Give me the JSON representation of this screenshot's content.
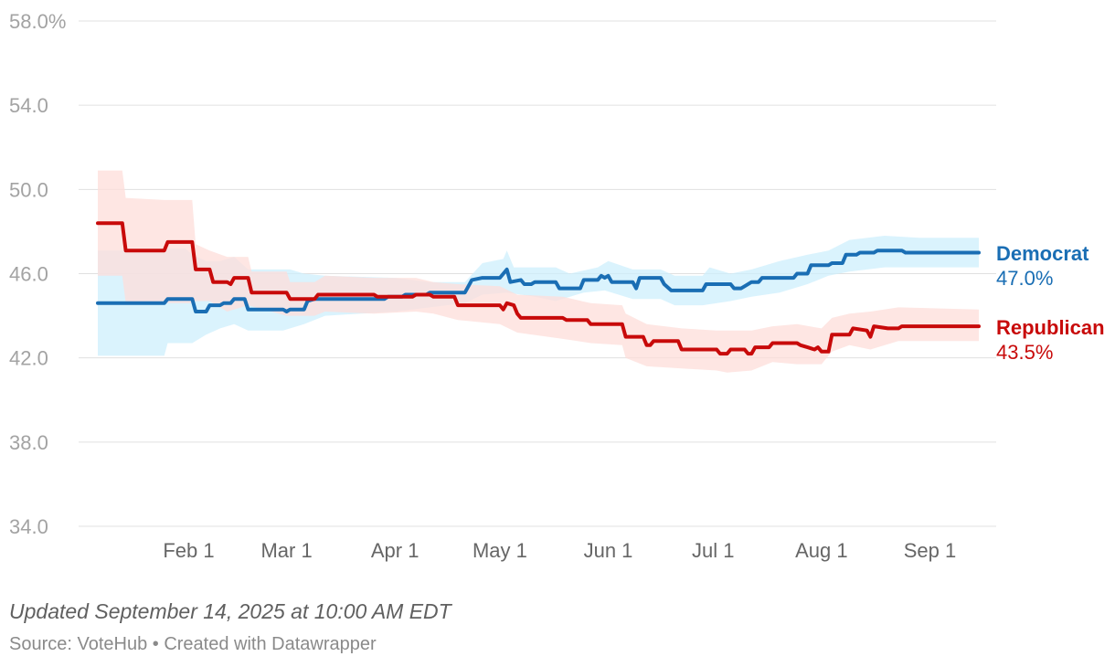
{
  "chart_data": {
    "type": "line",
    "title": "",
    "xlabel": "",
    "ylabel": "",
    "ylim": [
      34.0,
      58.0
    ],
    "yticks": [
      34.0,
      38.0,
      42.0,
      46.0,
      50.0,
      54.0,
      58.0
    ],
    "ytick_labels": [
      "34.0",
      "38.0",
      "42.0",
      "46.0",
      "50.0",
      "54.0",
      "58.0%"
    ],
    "xlim": [
      5,
      257
    ],
    "xticks": [
      {
        "day": 31,
        "label": "Feb 1"
      },
      {
        "day": 59,
        "label": "Mar 1"
      },
      {
        "day": 90,
        "label": "Apr 1"
      },
      {
        "day": 120,
        "label": "May 1"
      },
      {
        "day": 151,
        "label": "Jun 1"
      },
      {
        "day": 181,
        "label": "Jul 1"
      },
      {
        "day": 212,
        "label": "Aug 1"
      },
      {
        "day": 243,
        "label": "Sep 1"
      }
    ],
    "x_unit": "day of year 2025",
    "series": [
      {
        "name": "Democrat",
        "color": "#1a6eb4",
        "band_color": "#cdeffc",
        "end_label": "47.0%",
        "points": [
          [
            5,
            44.6
          ],
          [
            24,
            44.6
          ],
          [
            25,
            44.8
          ],
          [
            32,
            44.8
          ],
          [
            33,
            44.2
          ],
          [
            36,
            44.2
          ],
          [
            37,
            44.5
          ],
          [
            40,
            44.5
          ],
          [
            41,
            44.6
          ],
          [
            43,
            44.6
          ],
          [
            44,
            44.8
          ],
          [
            47,
            44.8
          ],
          [
            48,
            44.3
          ],
          [
            58,
            44.3
          ],
          [
            59,
            44.2
          ],
          [
            60,
            44.3
          ],
          [
            64,
            44.3
          ],
          [
            65,
            44.7
          ],
          [
            67,
            44.8
          ],
          [
            87,
            44.8
          ],
          [
            88,
            44.9
          ],
          [
            92,
            44.9
          ],
          [
            93,
            45.0
          ],
          [
            99,
            45.0
          ],
          [
            100,
            45.1
          ],
          [
            110,
            45.1
          ],
          [
            111,
            45.4
          ],
          [
            112,
            45.7
          ],
          [
            115,
            45.8
          ],
          [
            120,
            45.8
          ],
          [
            122,
            46.2
          ],
          [
            123,
            45.6
          ],
          [
            126,
            45.7
          ],
          [
            127,
            45.5
          ],
          [
            129,
            45.5
          ],
          [
            130,
            45.6
          ],
          [
            136,
            45.6
          ],
          [
            137,
            45.3
          ],
          [
            143,
            45.3
          ],
          [
            144,
            45.7
          ],
          [
            148,
            45.7
          ],
          [
            149,
            45.9
          ],
          [
            150,
            45.8
          ],
          [
            151,
            45.9
          ],
          [
            152,
            45.6
          ],
          [
            158,
            45.6
          ],
          [
            159,
            45.3
          ],
          [
            160,
            45.8
          ],
          [
            166,
            45.8
          ],
          [
            167,
            45.5
          ],
          [
            169,
            45.2
          ],
          [
            178,
            45.2
          ],
          [
            179,
            45.5
          ],
          [
            186,
            45.5
          ],
          [
            187,
            45.3
          ],
          [
            189,
            45.3
          ],
          [
            190,
            45.4
          ],
          [
            192,
            45.6
          ],
          [
            194,
            45.6
          ],
          [
            195,
            45.8
          ],
          [
            204,
            45.8
          ],
          [
            205,
            46.0
          ],
          [
            208,
            46.0
          ],
          [
            209,
            46.4
          ],
          [
            214,
            46.4
          ],
          [
            215,
            46.5
          ],
          [
            218,
            46.5
          ],
          [
            219,
            46.9
          ],
          [
            222,
            46.9
          ],
          [
            223,
            47.0
          ],
          [
            227,
            47.0
          ],
          [
            228,
            47.1
          ],
          [
            235,
            47.1
          ],
          [
            236,
            47.0
          ],
          [
            257,
            47.0
          ]
        ],
        "band_upper": [
          [
            5,
            47.1
          ],
          [
            20,
            47.1
          ],
          [
            24,
            47.2
          ],
          [
            30,
            47.2
          ],
          [
            32,
            46.9
          ],
          [
            36,
            46.6
          ],
          [
            40,
            46.6
          ],
          [
            44,
            46.8
          ],
          [
            48,
            46.2
          ],
          [
            60,
            46.2
          ],
          [
            64,
            46.0
          ],
          [
            70,
            45.9
          ],
          [
            90,
            45.8
          ],
          [
            100,
            45.6
          ],
          [
            110,
            45.6
          ],
          [
            115,
            46.5
          ],
          [
            121,
            46.7
          ],
          [
            122,
            47.1
          ],
          [
            124,
            46.3
          ],
          [
            136,
            46.3
          ],
          [
            140,
            46.0
          ],
          [
            148,
            46.3
          ],
          [
            151,
            46.6
          ],
          [
            158,
            46.2
          ],
          [
            166,
            46.2
          ],
          [
            170,
            45.9
          ],
          [
            178,
            45.9
          ],
          [
            180,
            46.3
          ],
          [
            186,
            46.0
          ],
          [
            192,
            46.2
          ],
          [
            200,
            46.6
          ],
          [
            208,
            46.9
          ],
          [
            214,
            47.1
          ],
          [
            220,
            47.6
          ],
          [
            230,
            47.8
          ],
          [
            240,
            47.7
          ],
          [
            257,
            47.7
          ]
        ],
        "band_lower": [
          [
            5,
            42.1
          ],
          [
            24,
            42.1
          ],
          [
            25,
            42.7
          ],
          [
            32,
            42.7
          ],
          [
            36,
            43.1
          ],
          [
            40,
            43.4
          ],
          [
            44,
            43.6
          ],
          [
            48,
            43.3
          ],
          [
            58,
            43.3
          ],
          [
            64,
            43.6
          ],
          [
            70,
            44.0
          ],
          [
            90,
            44.2
          ],
          [
            100,
            44.4
          ],
          [
            110,
            44.6
          ],
          [
            115,
            45.0
          ],
          [
            122,
            45.1
          ],
          [
            130,
            44.9
          ],
          [
            136,
            44.7
          ],
          [
            144,
            45.1
          ],
          [
            150,
            45.2
          ],
          [
            158,
            44.8
          ],
          [
            166,
            44.8
          ],
          [
            170,
            44.5
          ],
          [
            178,
            44.5
          ],
          [
            186,
            44.7
          ],
          [
            192,
            44.9
          ],
          [
            200,
            45.1
          ],
          [
            208,
            45.5
          ],
          [
            214,
            45.9
          ],
          [
            220,
            46.1
          ],
          [
            230,
            46.3
          ],
          [
            257,
            46.3
          ]
        ]
      },
      {
        "name": "Republican",
        "color": "#c80a0a",
        "band_color": "#fdddd9",
        "end_label": "43.5%",
        "points": [
          [
            5,
            48.4
          ],
          [
            12,
            48.4
          ],
          [
            13,
            47.1
          ],
          [
            24,
            47.1
          ],
          [
            25,
            47.5
          ],
          [
            32,
            47.5
          ],
          [
            33,
            46.2
          ],
          [
            37,
            46.2
          ],
          [
            38,
            45.6
          ],
          [
            42,
            45.6
          ],
          [
            43,
            45.5
          ],
          [
            44,
            45.8
          ],
          [
            48,
            45.8
          ],
          [
            49,
            45.1
          ],
          [
            59,
            45.1
          ],
          [
            60,
            44.8
          ],
          [
            67,
            44.8
          ],
          [
            68,
            45.0
          ],
          [
            84,
            45.0
          ],
          [
            85,
            44.9
          ],
          [
            95,
            44.9
          ],
          [
            96,
            45.0
          ],
          [
            100,
            45.0
          ],
          [
            101,
            44.9
          ],
          [
            107,
            44.9
          ],
          [
            108,
            44.5
          ],
          [
            120,
            44.5
          ],
          [
            121,
            44.3
          ],
          [
            122,
            44.6
          ],
          [
            124,
            44.5
          ],
          [
            125,
            44.1
          ],
          [
            126,
            43.9
          ],
          [
            138,
            43.9
          ],
          [
            139,
            43.8
          ],
          [
            145,
            43.8
          ],
          [
            146,
            43.6
          ],
          [
            155,
            43.6
          ],
          [
            156,
            43.0
          ],
          [
            161,
            43.0
          ],
          [
            162,
            42.6
          ],
          [
            163,
            42.6
          ],
          [
            164,
            42.8
          ],
          [
            171,
            42.8
          ],
          [
            172,
            42.4
          ],
          [
            182,
            42.4
          ],
          [
            183,
            42.2
          ],
          [
            185,
            42.2
          ],
          [
            186,
            42.4
          ],
          [
            190,
            42.4
          ],
          [
            191,
            42.2
          ],
          [
            192,
            42.2
          ],
          [
            193,
            42.5
          ],
          [
            197,
            42.5
          ],
          [
            198,
            42.7
          ],
          [
            205,
            42.7
          ],
          [
            206,
            42.6
          ],
          [
            208,
            42.5
          ],
          [
            210,
            42.4
          ],
          [
            211,
            42.5
          ],
          [
            212,
            42.3
          ],
          [
            214,
            42.3
          ],
          [
            215,
            43.1
          ],
          [
            220,
            43.1
          ],
          [
            221,
            43.4
          ],
          [
            225,
            43.3
          ],
          [
            226,
            43.0
          ],
          [
            227,
            43.5
          ],
          [
            231,
            43.4
          ],
          [
            234,
            43.4
          ],
          [
            235,
            43.5
          ],
          [
            257,
            43.5
          ]
        ],
        "band_upper": [
          [
            5,
            50.9
          ],
          [
            12,
            50.9
          ],
          [
            13,
            49.6
          ],
          [
            24,
            49.5
          ],
          [
            32,
            49.5
          ],
          [
            33,
            47.4
          ],
          [
            37,
            47.1
          ],
          [
            42,
            46.8
          ],
          [
            48,
            46.8
          ],
          [
            49,
            46.1
          ],
          [
            59,
            46.1
          ],
          [
            60,
            45.6
          ],
          [
            67,
            45.6
          ],
          [
            70,
            45.9
          ],
          [
            84,
            45.8
          ],
          [
            96,
            45.8
          ],
          [
            101,
            45.6
          ],
          [
            108,
            45.5
          ],
          [
            120,
            45.4
          ],
          [
            125,
            45.0
          ],
          [
            138,
            44.9
          ],
          [
            146,
            44.6
          ],
          [
            155,
            44.5
          ],
          [
            156,
            44.1
          ],
          [
            162,
            43.6
          ],
          [
            172,
            43.4
          ],
          [
            182,
            43.3
          ],
          [
            192,
            43.3
          ],
          [
            198,
            43.5
          ],
          [
            205,
            43.6
          ],
          [
            212,
            43.4
          ],
          [
            215,
            43.9
          ],
          [
            220,
            44.1
          ],
          [
            226,
            44.2
          ],
          [
            234,
            44.4
          ],
          [
            257,
            44.3
          ]
        ],
        "band_lower": [
          [
            5,
            45.9
          ],
          [
            12,
            45.9
          ],
          [
            13,
            44.6
          ],
          [
            24,
            44.6
          ],
          [
            32,
            44.6
          ],
          [
            33,
            44.7
          ],
          [
            37,
            44.7
          ],
          [
            42,
            44.2
          ],
          [
            48,
            44.5
          ],
          [
            59,
            44.0
          ],
          [
            67,
            44.0
          ],
          [
            70,
            44.2
          ],
          [
            84,
            44.1
          ],
          [
            96,
            44.2
          ],
          [
            101,
            44.1
          ],
          [
            108,
            43.8
          ],
          [
            120,
            43.6
          ],
          [
            125,
            43.2
          ],
          [
            138,
            42.9
          ],
          [
            146,
            42.7
          ],
          [
            155,
            42.6
          ],
          [
            156,
            42.0
          ],
          [
            162,
            41.6
          ],
          [
            172,
            41.5
          ],
          [
            182,
            41.4
          ],
          [
            185,
            41.3
          ],
          [
            192,
            41.4
          ],
          [
            198,
            41.8
          ],
          [
            205,
            41.7
          ],
          [
            212,
            41.7
          ],
          [
            215,
            42.3
          ],
          [
            220,
            42.6
          ],
          [
            226,
            42.4
          ],
          [
            234,
            42.8
          ],
          [
            257,
            42.8
          ]
        ]
      }
    ]
  },
  "footer": {
    "updated": "Updated September 14, 2025 at 10:00 AM EDT",
    "source": "Source: VoteHub • Created with Datawrapper"
  }
}
